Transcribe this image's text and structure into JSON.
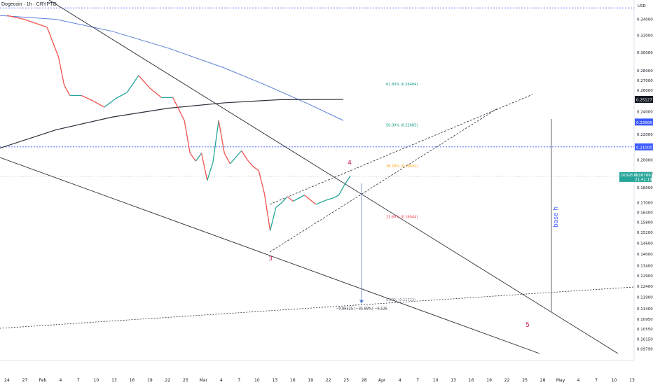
{
  "header": {
    "symbol_title": "Dogecoin · 1h · CRYPTO",
    "currency": "USD"
  },
  "colors": {
    "background": "#ffffff",
    "up_candle": "#26a69a",
    "down_candle": "#ef5350",
    "ma_blue": "#5b7fd6",
    "ma_dark": "#2a2e39",
    "trendline": "#2a2e39",
    "level_dotted": "#3d5afe",
    "fib_618": "#089981",
    "fib_50": "#089981",
    "fib_382": "#ff9800",
    "fib_236": "#f23645",
    "fib_0": "#787b86",
    "wave_label": "#c2185b",
    "measure_arrow": "#5b7fd6",
    "price_tag_current": "#26a69a",
    "price_tag_level": "#3d5afe",
    "price_tag_dark": "#131722"
  },
  "chart_data": {
    "type": "line",
    "symbol": "Dogecoin",
    "interval": "1h",
    "exchange": "CRYPTO",
    "y_axis": {
      "scale": "log",
      "range": [
        0.0962,
        0.36
      ],
      "tick_labels": [
        "0.34000",
        "0.32000",
        "0.30000",
        "0.28000",
        "0.27000",
        "0.26000",
        "0.24000",
        "0.23000",
        "0.22000",
        "0.20000",
        "0.19000",
        "0.18000",
        "0.17000",
        "0.16400",
        "0.15800",
        "0.15200",
        "0.14600",
        "0.14000",
        "0.13400",
        "0.12900",
        "0.12400",
        "0.11900",
        "0.11400",
        "0.10950",
        "0.10550",
        "0.10150",
        "0.09790"
      ],
      "position": "right"
    },
    "x_axis": {
      "tick_labels": [
        "24",
        "27",
        "Feb",
        "4",
        "7",
        "10",
        "13",
        "16",
        "19",
        "22",
        "25",
        "Mar",
        "4",
        "7",
        "10",
        "13",
        "16",
        "19",
        "22",
        "25",
        "28",
        "Apr",
        "4",
        "7",
        "10",
        "13",
        "16",
        "19",
        "22",
        "25",
        "28",
        "May",
        "4",
        "7",
        "10",
        "13"
      ]
    },
    "price_labels": {
      "current_symbol": "DOGEUSD",
      "current_price": "0.18788",
      "countdown": "21:41:19",
      "upper_level": "0.25127",
      "mid_level": "0.23066",
      "lower_level": "0.21000"
    },
    "fib_levels": [
      {
        "label": "61.80% (0.26484)",
        "value": 0.26484
      },
      {
        "label": "50.00% (0.22685)",
        "value": 0.22685
      },
      {
        "label": "38.20% (0.19431)",
        "value": 0.19431
      },
      {
        "label": "23.60% (0.16044)",
        "value": 0.16044
      },
      {
        "label": "0.00% (0.11723)",
        "value": 0.11723
      }
    ],
    "wave_labels": [
      "3",
      "4",
      "5"
    ],
    "measure_label": "−0.06525 (−35.69%) −6,525",
    "vertical_annotation": "base h",
    "dotted_levels": [
      0.355,
      0.21,
      0.18788
    ],
    "price_series": {
      "x": [
        "Jan 24",
        "Jan 27",
        "Jan 29",
        "Jan 31",
        "Feb 2",
        "Feb 3",
        "Feb 4",
        "Feb 6",
        "Feb 8",
        "Feb 10",
        "Feb 12",
        "Feb 14",
        "Feb 16",
        "Feb 18",
        "Feb 20",
        "Feb 22",
        "Feb 24",
        "Feb 25",
        "Feb 26",
        "Feb 27",
        "Feb 28",
        "Mar 1",
        "Mar 2",
        "Mar 3",
        "Mar 4",
        "Mar 5",
        "Mar 6",
        "Mar 7",
        "Mar 8",
        "Mar 9",
        "Mar 10",
        "Mar 11",
        "Mar 12",
        "Mar 13",
        "Mar 14",
        "Mar 15",
        "Mar 17",
        "Mar 19",
        "Mar 21",
        "Mar 22",
        "Mar 23",
        "Mar 24",
        "Mar 25"
      ],
      "y": [
        0.345,
        0.34,
        0.335,
        0.33,
        0.295,
        0.265,
        0.255,
        0.255,
        0.25,
        0.244,
        0.252,
        0.258,
        0.275,
        0.262,
        0.253,
        0.253,
        0.232,
        0.205,
        0.199,
        0.205,
        0.185,
        0.198,
        0.232,
        0.205,
        0.197,
        0.202,
        0.207,
        0.2,
        0.195,
        0.192,
        0.176,
        0.153,
        0.167,
        0.17,
        0.174,
        0.171,
        0.175,
        0.169,
        0.172,
        0.173,
        0.175,
        0.182,
        0.188
      ]
    }
  }
}
